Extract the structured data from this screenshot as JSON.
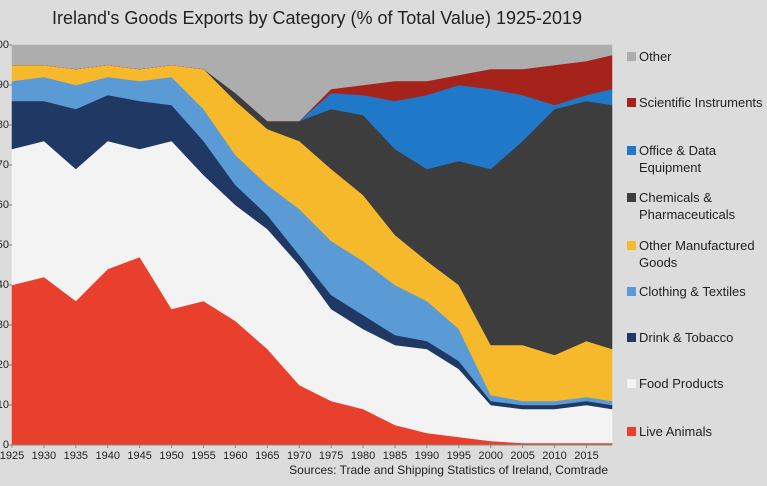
{
  "chart_data": {
    "type": "stacked_area",
    "title": "Ireland's Goods Exports by Category (% of Total Value) 1925-2019",
    "source": "Sources: Trade and Shipping Statistics of Ireland, Comtrade",
    "x": [
      1925,
      1930,
      1935,
      1940,
      1945,
      1950,
      1955,
      1960,
      1965,
      1970,
      1975,
      1980,
      1985,
      1990,
      1995,
      2000,
      2005,
      2010,
      2015,
      2019
    ],
    "xlim": [
      1925,
      2019
    ],
    "xticks": [
      1925,
      1930,
      1935,
      1940,
      1945,
      1950,
      1955,
      1960,
      1965,
      1970,
      1975,
      1980,
      1985,
      1990,
      1995,
      2000,
      2005,
      2010,
      2015
    ],
    "ylim": [
      0,
      100
    ],
    "yticks": [
      0,
      10,
      20,
      30,
      40,
      50,
      60,
      70,
      80,
      90,
      100
    ],
    "series": [
      {
        "name": "Live Animals",
        "color": "#e8402c",
        "values": [
          40,
          42,
          36,
          44,
          47,
          34,
          36,
          31,
          24,
          15,
          11,
          9,
          5,
          3,
          2,
          1,
          0.5,
          0.5,
          0.5,
          0.5
        ]
      },
      {
        "name": "Food Products",
        "color": "#f3f3f3",
        "values": [
          34,
          34,
          33,
          32,
          27,
          42,
          31.5,
          29,
          30,
          30,
          23,
          20,
          20,
          21,
          17,
          9,
          8.5,
          8.5,
          9.5,
          8.5
        ]
      },
      {
        "name": "Drink & Tobacco",
        "color": "#1f3864",
        "values": [
          12,
          10,
          15,
          11.5,
          12,
          9,
          8.5,
          5,
          3.5,
          2.5,
          3.5,
          3.5,
          2.5,
          2,
          2,
          1,
          1,
          1,
          1,
          1
        ]
      },
      {
        "name": "Clothing & Textiles",
        "color": "#5b9bd5",
        "values": [
          5,
          6,
          6,
          4.5,
          5,
          7,
          8,
          7.5,
          7.5,
          11.5,
          13.5,
          13.5,
          12.5,
          10,
          8,
          1.5,
          1,
          1,
          1,
          1
        ]
      },
      {
        "name": "Other Manufactured Goods",
        "color": "#f6b92b",
        "values": [
          4,
          3,
          4,
          3,
          3,
          3,
          10,
          13.5,
          14,
          17,
          18,
          16.5,
          12.5,
          10,
          11,
          12.5,
          14,
          11.5,
          14,
          13
        ]
      },
      {
        "name": "Chemicals & Pharmaceuticals",
        "color": "#3d3d3d",
        "values": [
          0,
          0,
          0,
          0,
          0,
          0,
          0,
          2,
          2,
          5,
          15,
          20,
          21.5,
          23,
          31,
          44,
          51,
          61.5,
          60,
          61
        ]
      },
      {
        "name": "Office & Data Equipment",
        "color": "#1f78c8",
        "values": [
          0,
          0,
          0,
          0,
          0,
          0,
          0,
          0,
          0,
          0,
          4,
          5,
          12,
          18.5,
          19,
          20,
          11.5,
          1,
          1.5,
          4
        ]
      },
      {
        "name": "Scientific Instruments",
        "color": "#a5231b",
        "values": [
          0,
          0,
          0,
          0,
          0,
          0,
          0,
          0,
          0,
          0,
          1,
          2.5,
          5,
          3.5,
          2.5,
          5,
          6.5,
          10,
          8.5,
          8.5
        ]
      },
      {
        "name": "Other",
        "color": "#adadad",
        "values": [
          5,
          5,
          6,
          5,
          6,
          5,
          6,
          12,
          19,
          19,
          11,
          10,
          9,
          9,
          7.5,
          6,
          6,
          5,
          4,
          2.5
        ]
      }
    ]
  }
}
